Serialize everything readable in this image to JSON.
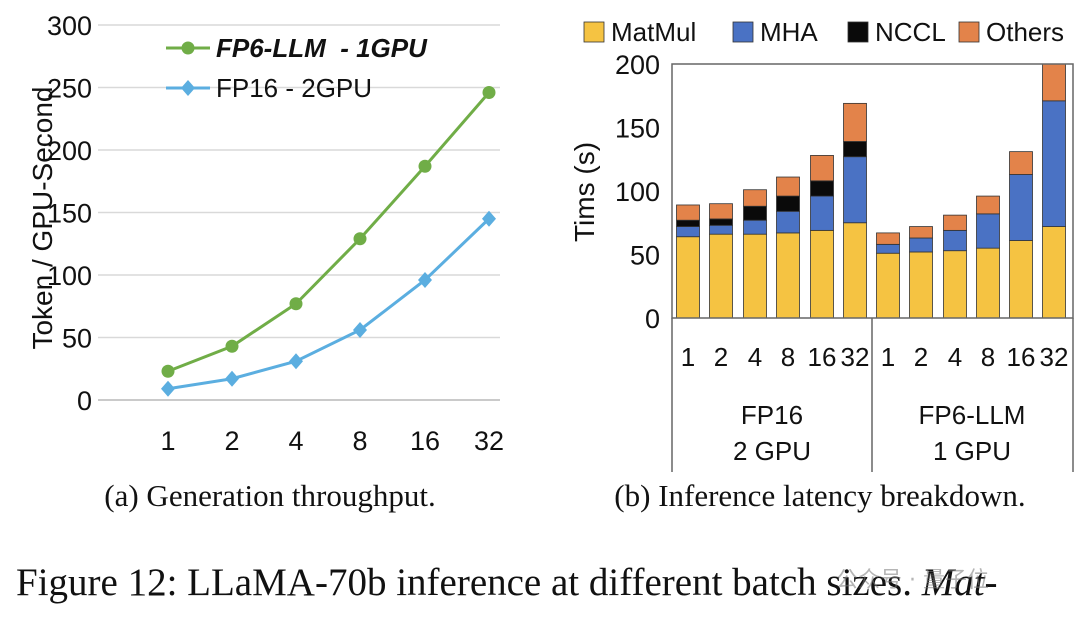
{
  "chart_data": [
    {
      "type": "line",
      "title": "",
      "xlabel": "",
      "ylabel": "Token / GPU-Second",
      "categories": [
        "1",
        "2",
        "4",
        "8",
        "16",
        "32"
      ],
      "ylim": [
        0,
        300
      ],
      "yticks": [
        "0",
        "50",
        "100",
        "150",
        "200",
        "250",
        "300"
      ],
      "legend_position": "top-left",
      "series": [
        {
          "name": "FP6-LLM  - 1GPU",
          "values": [
            23,
            43,
            77,
            129,
            187,
            246
          ],
          "color": "#70ad47",
          "marker": "circle"
        },
        {
          "name": "FP16 - 2GPU",
          "values": [
            9,
            17,
            31,
            56,
            96,
            145
          ],
          "color": "#5baee0",
          "marker": "diamond"
        }
      ]
    },
    {
      "type": "bar",
      "stacked": true,
      "title": "",
      "xlabel": "",
      "ylabel": "Tims (s)",
      "ylim": [
        0,
        200
      ],
      "yticks": [
        "0",
        "50",
        "100",
        "150",
        "200"
      ],
      "legend_position": "top",
      "categories": [
        "1",
        "2",
        "4",
        "8",
        "16",
        "32",
        "1",
        "2",
        "4",
        "8",
        "16",
        "32"
      ],
      "groups": [
        {
          "line1": "FP16",
          "line2": "2 GPU"
        },
        {
          "line1": "FP6-LLM",
          "line2": "1 GPU"
        }
      ],
      "series": [
        {
          "name": "MatMul",
          "color": "#f5c342",
          "values": [
            64,
            66,
            66,
            67,
            69,
            75,
            51,
            52,
            53,
            55,
            61,
            72
          ]
        },
        {
          "name": "MHA",
          "color": "#4a72c4",
          "values": [
            8,
            7,
            11,
            17,
            27,
            52,
            7,
            11,
            16,
            27,
            52,
            99
          ]
        },
        {
          "name": "NCCL",
          "color": "#0a0a0a",
          "values": [
            5,
            5,
            11,
            12,
            12,
            12,
            0,
            0,
            0,
            0,
            0,
            0
          ]
        },
        {
          "name": "Others",
          "color": "#e3834a",
          "values": [
            12,
            12,
            13,
            15,
            20,
            30,
            9,
            9,
            12,
            14,
            18,
            29
          ]
        }
      ]
    }
  ],
  "captions": {
    "a": "(a) Generation throughput.",
    "b": "(b) Inference latency breakdown."
  },
  "figure_caption": {
    "main": "Figure 12: LLaMA-70b inference at different batch sizes. ",
    "italic": "Mat-"
  },
  "watermark": "公众号 · 量子位"
}
